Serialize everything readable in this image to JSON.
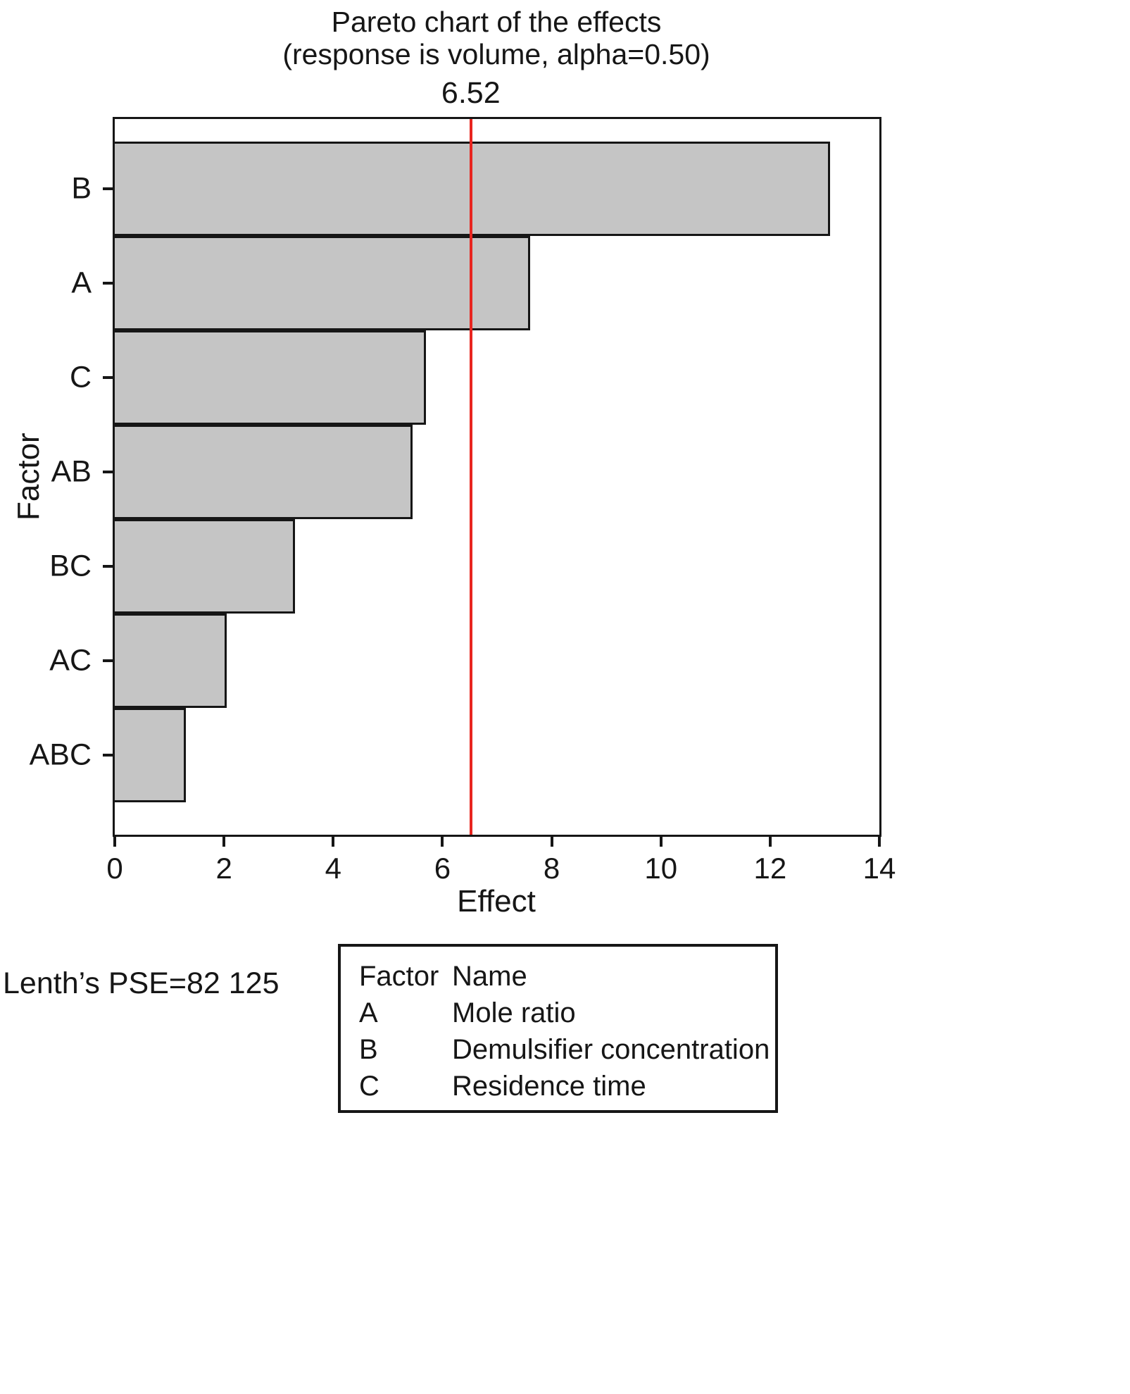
{
  "chart_data": {
    "type": "bar",
    "orientation": "horizontal",
    "title": "Pareto chart of the effects",
    "subtitle": "(response is volume, alpha=0.50)",
    "xlabel": "Effect",
    "ylabel": "Factor",
    "categories": [
      "B",
      "A",
      "C",
      "AB",
      "BC",
      "AC",
      "ABC"
    ],
    "values": [
      13.1,
      7.6,
      5.7,
      5.45,
      3.3,
      2.05,
      1.3
    ],
    "xlim": [
      0,
      14
    ],
    "x_ticks": [
      0,
      2,
      4,
      6,
      8,
      10,
      12,
      14
    ],
    "grid": "off",
    "reference_line": {
      "value": 6.52,
      "label": "6.52",
      "color": "#e8251f"
    },
    "bar_color": "#c5c5c5",
    "bar_border_color": "#161616"
  },
  "footnote": "Lenth’s PSE=82 125",
  "legend": {
    "header": {
      "factor": "Factor",
      "name": "Name"
    },
    "rows": [
      {
        "factor": "A",
        "name": "Mole ratio"
      },
      {
        "factor": "B",
        "name": "Demulsifier concentration"
      },
      {
        "factor": "C",
        "name": "Residence time"
      }
    ]
  }
}
